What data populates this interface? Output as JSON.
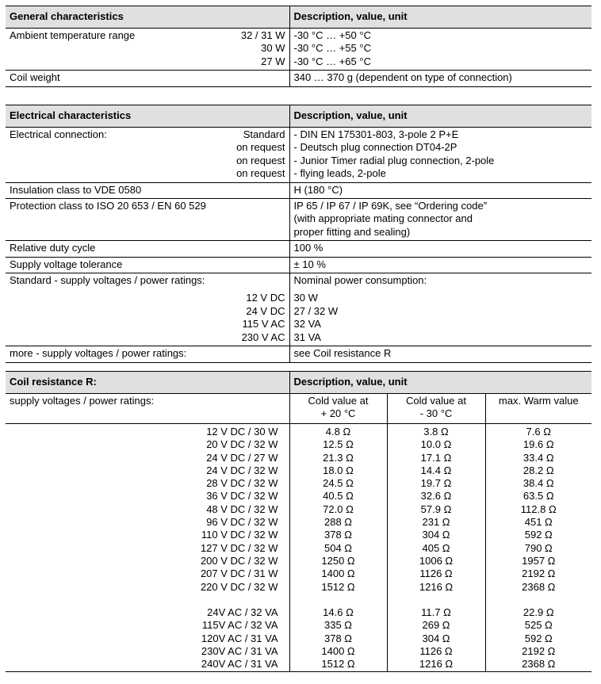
{
  "general": {
    "header": "General characteristics",
    "header_right": "Description, value, unit",
    "ambient_label": "Ambient temperature range",
    "ambient": [
      {
        "rating": "32 / 31 W",
        "value": "-30 °C … +50 °C"
      },
      {
        "rating": "30 W",
        "value": "-30 °C … +55 °C"
      },
      {
        "rating": "27 W",
        "value": "-30 °C … +65 °C"
      }
    ],
    "coil_weight_label": "Coil weight",
    "coil_weight_value": "340 … 370 g  (dependent on type of connection)"
  },
  "electrical": {
    "header": "Electrical characteristics",
    "header_right": "Description, value, unit",
    "connection_label": "Electrical connection:",
    "connections": [
      {
        "type": "Standard",
        "value": "-  DIN EN 175301-803, 3-pole 2 P+E"
      },
      {
        "type": "on request",
        "value": "-  Deutsch plug connection DT04-2P"
      },
      {
        "type": "on request",
        "value": "-  Junior Timer radial plug connection, 2-pole"
      },
      {
        "type": "on request",
        "value": "-  flying leads, 2-pole"
      }
    ],
    "insulation_label": "Insulation class to VDE 0580",
    "insulation_value": "H (180 °C)",
    "protection_label": "Protection class to ISO 20 653 / EN 60 529",
    "protection_lines": [
      "IP 65 / IP 67 / IP 69K, see “Ordering code”",
      "(with appropriate mating connector and",
      "proper fitting and sealing)"
    ],
    "duty_label": "Relative duty cycle",
    "duty_value": "100 %",
    "tolerance_label": "Supply voltage tolerance",
    "tolerance_value": "± 10 %",
    "standard_label": "Standard - supply voltages / power ratings:",
    "standard_value_heading": "Nominal power consumption:",
    "standard": [
      {
        "voltage": "12 V DC",
        "power": "30 W"
      },
      {
        "voltage": "24 V DC",
        "power": "27 / 32 W"
      },
      {
        "voltage": "115 V AC",
        "power": "32 VA"
      },
      {
        "voltage": "230 V AC",
        "power": "31 VA"
      }
    ],
    "more_label": "more - supply voltages / power ratings:",
    "more_value": "see Coil resistance R"
  },
  "coil": {
    "header": "Coil resistance R:",
    "header_right": "Description, value, unit",
    "sub_label": "supply voltages / power ratings:",
    "col1": [
      "Cold value at",
      "+ 20 °C"
    ],
    "col2": [
      "Cold value at",
      "- 30 °C"
    ],
    "col3": [
      "max. Warm value"
    ],
    "dc_rows": [
      [
        "12 V DC / 30 W",
        "4.8 Ω",
        "3.8 Ω",
        "7.6 Ω"
      ],
      [
        "20 V DC / 32 W",
        "12.5 Ω",
        "10.0 Ω",
        "19.6 Ω"
      ],
      [
        "24 V DC / 27 W",
        "21.3 Ω",
        "17.1 Ω",
        "33.4 Ω"
      ],
      [
        "24 V DC / 32 W",
        "18.0 Ω",
        "14.4 Ω",
        "28.2 Ω"
      ],
      [
        "28 V DC / 32 W",
        "24.5 Ω",
        "19.7 Ω",
        "38.4 Ω"
      ],
      [
        "36 V DC / 32 W",
        "40.5 Ω",
        "32.6 Ω",
        "63.5 Ω"
      ],
      [
        "48 V DC / 32 W",
        "72.0 Ω",
        "57.9 Ω",
        "112.8 Ω"
      ],
      [
        "96 V DC / 32 W",
        "288 Ω",
        "231 Ω",
        "451 Ω"
      ],
      [
        "110 V DC / 32 W",
        "378 Ω",
        "304 Ω",
        "592 Ω"
      ],
      [
        "127 V DC / 32 W",
        "504 Ω",
        "405 Ω",
        "790 Ω"
      ],
      [
        "200 V DC / 32 W",
        "1250 Ω",
        "1006 Ω",
        "1957 Ω"
      ],
      [
        "207 V DC / 31 W",
        "1400 Ω",
        "1126 Ω",
        "2192 Ω"
      ],
      [
        "220 V DC / 32 W",
        "1512 Ω",
        "1216 Ω",
        "2368 Ω"
      ]
    ],
    "ac_rows": [
      [
        "24V AC / 32 VA",
        "14.6 Ω",
        "11.7 Ω",
        "22.9 Ω"
      ],
      [
        "115V AC / 32 VA",
        "335 Ω",
        "269 Ω",
        "525 Ω"
      ],
      [
        "120V AC / 31 VA",
        "378 Ω",
        "304 Ω",
        "592 Ω"
      ],
      [
        "230V AC / 31 VA",
        "1400 Ω",
        "1126 Ω",
        "2192 Ω"
      ],
      [
        "240V AC / 31 VA",
        "1512 Ω",
        "1216 Ω",
        "2368 Ω"
      ]
    ]
  }
}
